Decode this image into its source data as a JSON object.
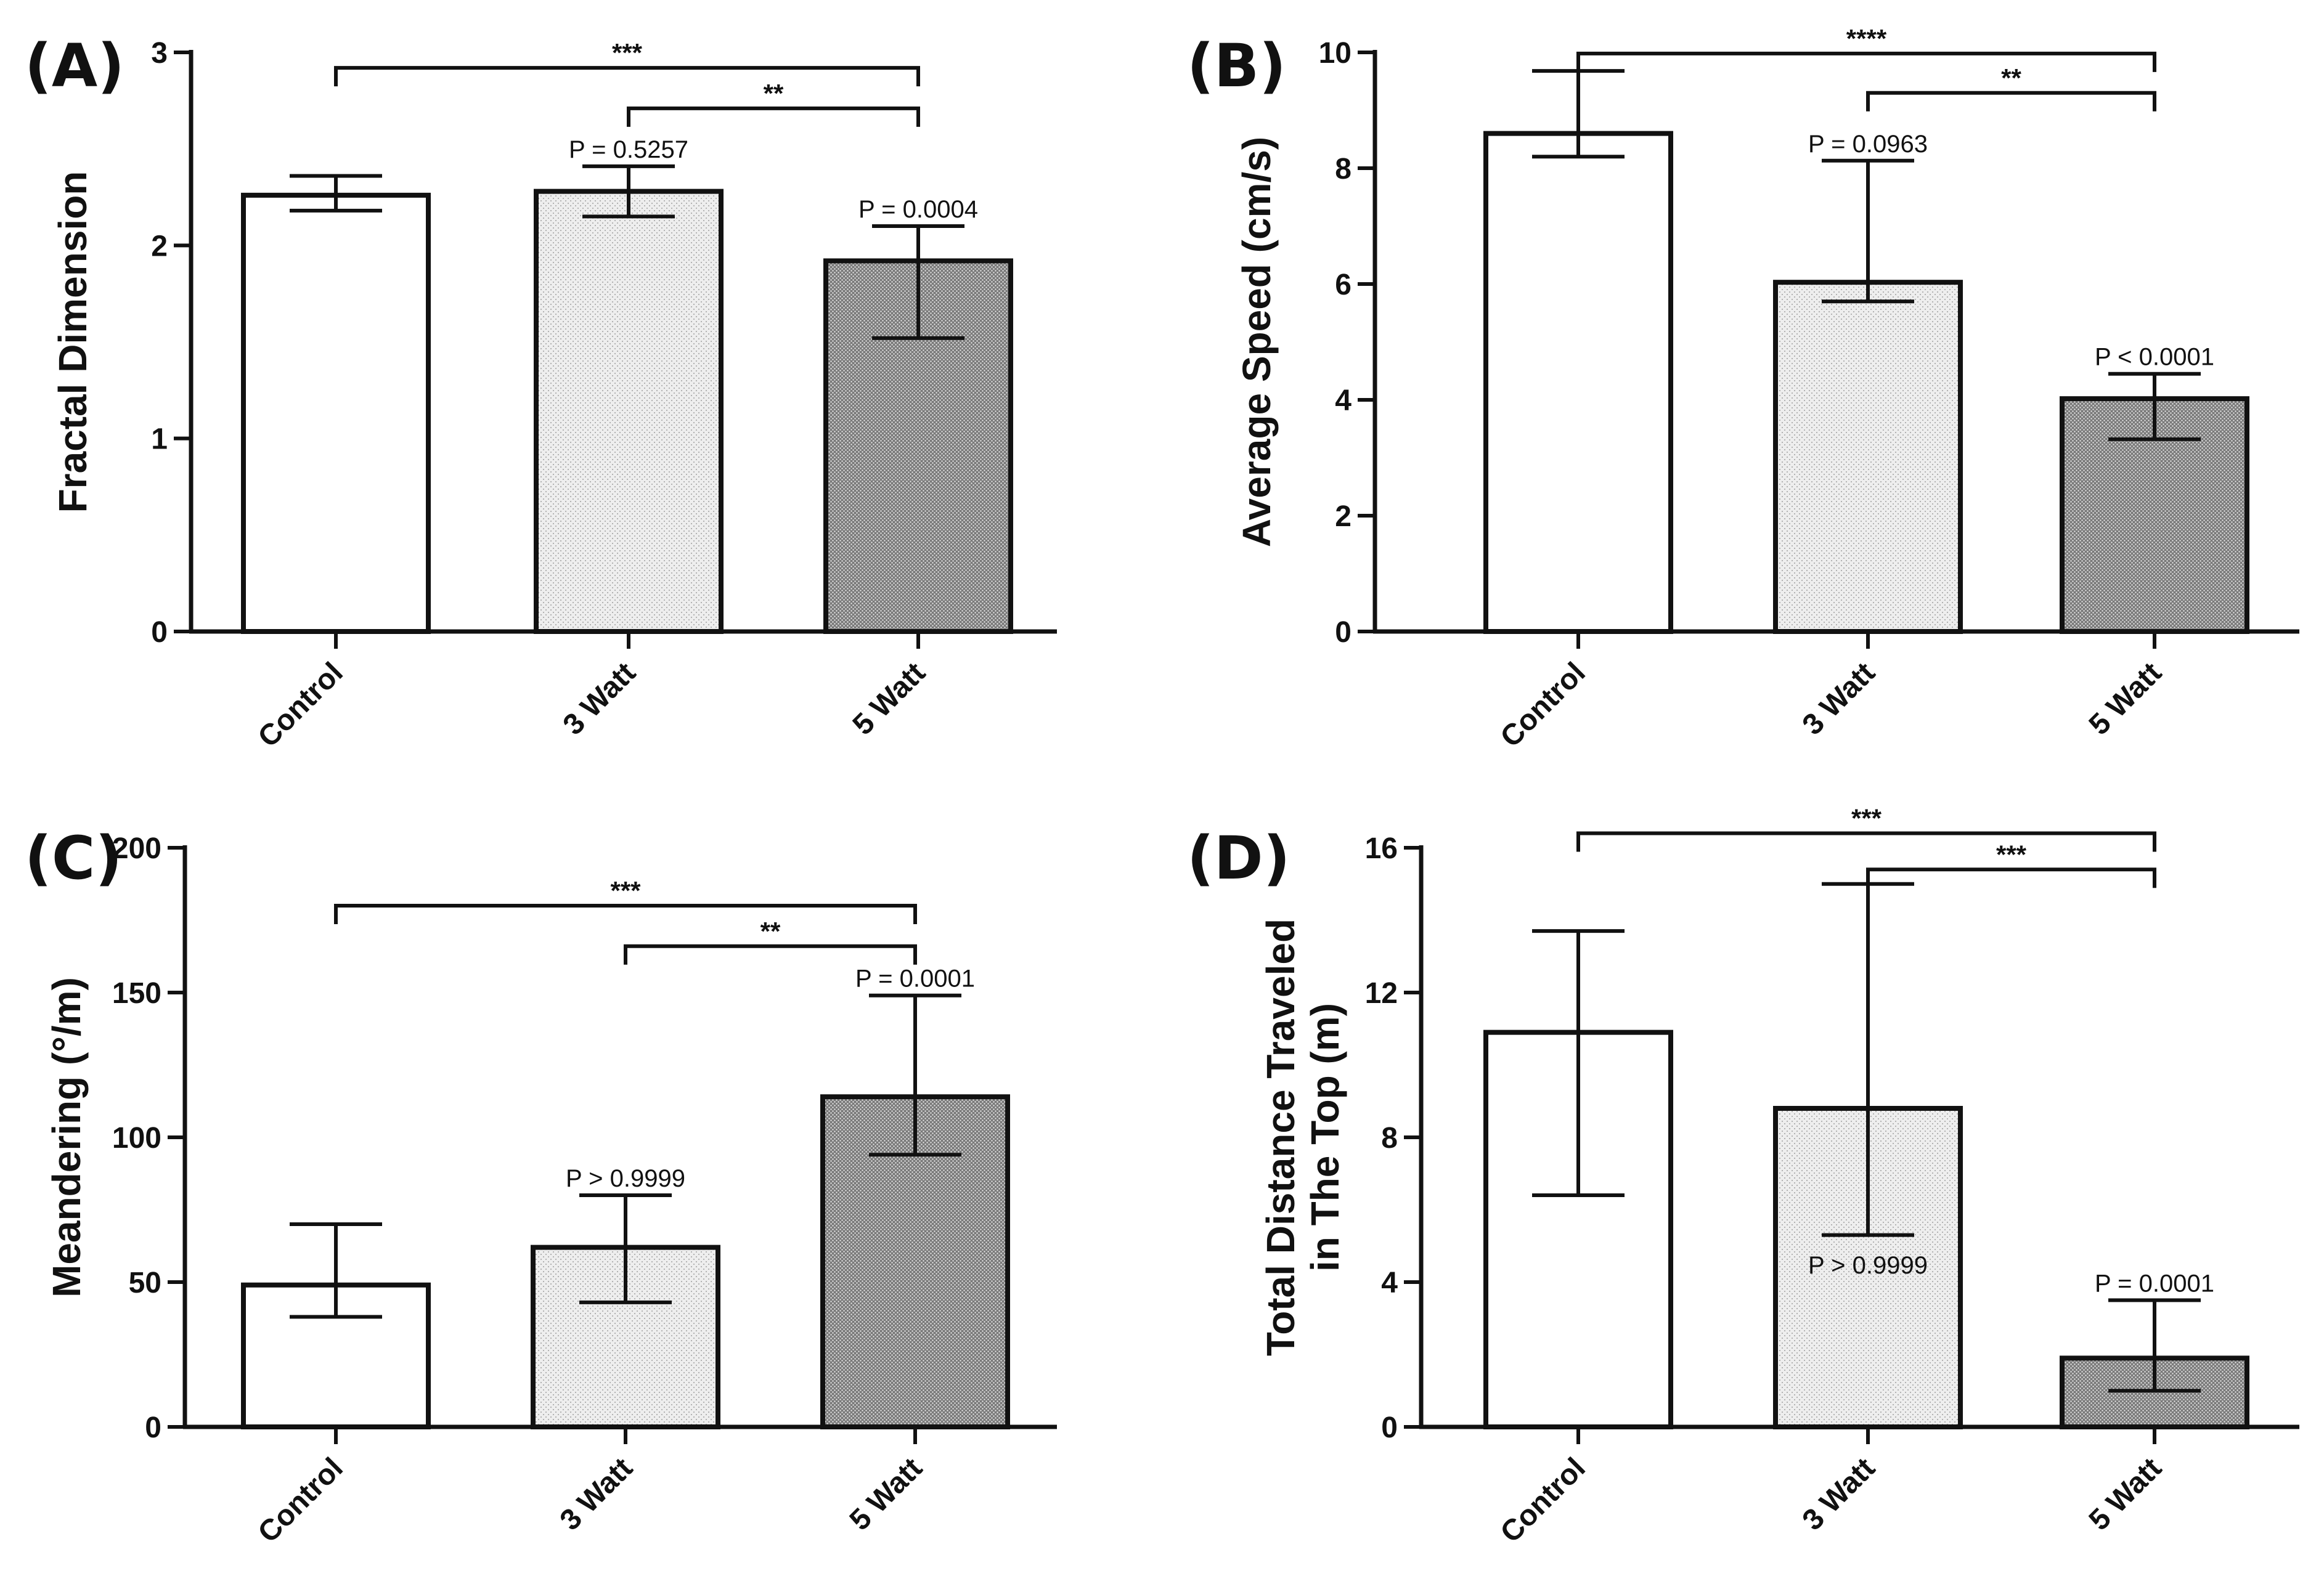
{
  "colors": {
    "control_fill": "#ffffff",
    "watt3_fill": "#eeeeee",
    "watt5_fill": "#7a7a7a",
    "stroke": "#111111"
  },
  "chart_data": [
    {
      "panel": "(A)",
      "type": "bar",
      "categories": [
        "Control",
        "3 Watt",
        "5 Watt"
      ],
      "values": [
        2.26,
        2.28,
        1.92
      ],
      "error_high": [
        2.36,
        2.41,
        2.1
      ],
      "error_low": [
        2.18,
        2.15,
        1.52
      ],
      "ylabel": "Fractal Dimension",
      "ylim": [
        0,
        3
      ],
      "yticks": [
        0,
        1,
        2,
        3
      ],
      "pvalues": [
        "",
        "P = 0.5257",
        "P = 0.0004"
      ],
      "pvalue_y": [
        null,
        2.41,
        2.1
      ],
      "brackets": [
        {
          "from": 0,
          "to": 2,
          "label": "***",
          "y": 2.92
        },
        {
          "from": 1,
          "to": 2,
          "label": "**",
          "y": 2.71
        }
      ]
    },
    {
      "panel": "(B)",
      "type": "bar",
      "categories": [
        "Control",
        "3 Watt",
        "5 Watt"
      ],
      "values": [
        8.6,
        6.03,
        4.02
      ],
      "error_high": [
        9.68,
        8.13,
        4.45
      ],
      "error_low": [
        8.2,
        5.7,
        3.32
      ],
      "ylabel": "Average Speed (cm/s)",
      "ylim": [
        0,
        10
      ],
      "yticks": [
        0,
        2,
        4,
        6,
        8,
        10
      ],
      "pvalues": [
        "",
        "P = 0.0963",
        "P < 0.0001"
      ],
      "pvalue_y": [
        null,
        8.13,
        4.45
      ],
      "brackets": [
        {
          "from": 0,
          "to": 2,
          "label": "****",
          "y": 9.98
        },
        {
          "from": 1,
          "to": 2,
          "label": "**",
          "y": 9.3
        }
      ]
    },
    {
      "panel": "(C)",
      "type": "bar",
      "categories": [
        "Control",
        "3 Watt",
        "5 Watt"
      ],
      "values": [
        49,
        62,
        114
      ],
      "error_high": [
        70,
        80,
        149
      ],
      "error_low": [
        38,
        43,
        94
      ],
      "ylabel": "Meandering (°/m)",
      "ylim": [
        0,
        200
      ],
      "yticks": [
        0,
        50,
        100,
        150,
        200
      ],
      "pvalues": [
        "",
        "P > 0.9999",
        "P = 0.0001"
      ],
      "pvalue_y": [
        null,
        80,
        149
      ],
      "brackets": [
        {
          "from": 0,
          "to": 2,
          "label": "***",
          "y": 180
        },
        {
          "from": 1,
          "to": 2,
          "label": "**",
          "y": 166
        }
      ]
    },
    {
      "panel": "(D)",
      "type": "bar",
      "categories": [
        "Control",
        "3 Watt",
        "5 Watt"
      ],
      "values": [
        10.9,
        8.8,
        1.9
      ],
      "error_high": [
        13.7,
        15,
        3.5
      ],
      "error_low": [
        6.4,
        5.3,
        1
      ],
      "ylabel": "Total Distance Traveled\nin The Top (m)",
      "ylim": [
        0,
        16
      ],
      "yticks": [
        0,
        4,
        8,
        12,
        16
      ],
      "pvalues": [
        "",
        "P > 0.9999",
        "P = 0.0001"
      ],
      "pvalue_y": [
        null,
        4.0,
        3.5
      ],
      "brackets": [
        {
          "from": 0,
          "to": 2,
          "label": "***",
          "y": 16.4
        },
        {
          "from": 1,
          "to": 2,
          "label": "***",
          "y": 15.4
        }
      ]
    }
  ]
}
